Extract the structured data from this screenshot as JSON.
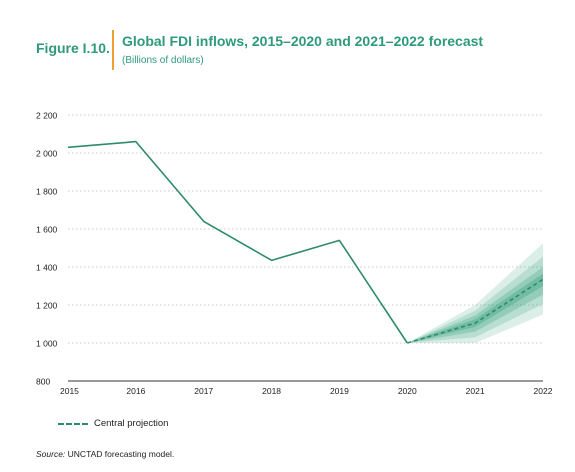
{
  "figure": {
    "label": "Figure I.10.",
    "title": "Global FDI inflows, 2015–2020 and 2021–2022 forecast",
    "subtitle": "(Billions of dollars)",
    "source_prefix": "Source:",
    "source_text": " UNCTAD forecasting model."
  },
  "colors": {
    "accent": "#2e9a7a",
    "line": "#2e8b6c",
    "divider": "#f0a030",
    "band": "#3aa37f"
  },
  "chart_data": {
    "type": "line",
    "x": [
      "2015",
      "2016",
      "2017",
      "2018",
      "2019",
      "2020",
      "2021",
      "2022"
    ],
    "ylim": [
      800,
      2200
    ],
    "yticks": [
      800,
      1000,
      1200,
      1400,
      1600,
      1800,
      2000,
      2200
    ],
    "ytick_labels": [
      "800",
      "1 000",
      "1 200",
      "1 400",
      "1 600",
      "1 800",
      "2 000",
      "2 200"
    ],
    "grid": true,
    "series": [
      {
        "values": [
          2030,
          2060,
          1640,
          1435,
          1540,
          1000,
          null,
          null
        ]
      },
      {
        "name": "Central projection",
        "values": [
          null,
          null,
          null,
          null,
          null,
          1000,
          1105,
          1335
        ],
        "style": "dashed"
      }
    ],
    "forecast_bands": [
      {
        "x": [
          "2020",
          "2021",
          "2022"
        ],
        "low": [
          1000,
          1000,
          1150
        ],
        "high": [
          1000,
          1200,
          1525
        ]
      },
      {
        "x": [
          "2020",
          "2021",
          "2022"
        ],
        "low": [
          1000,
          1030,
          1205
        ],
        "high": [
          1000,
          1170,
          1455
        ]
      },
      {
        "x": [
          "2020",
          "2021",
          "2022"
        ],
        "low": [
          1000,
          1060,
          1255
        ],
        "high": [
          1000,
          1145,
          1400
        ]
      },
      {
        "x": [
          "2020",
          "2021",
          "2022"
        ],
        "low": [
          1000,
          1085,
          1300
        ],
        "high": [
          1000,
          1125,
          1365
        ]
      }
    ],
    "legend": {
      "position": "bottom-left"
    }
  }
}
